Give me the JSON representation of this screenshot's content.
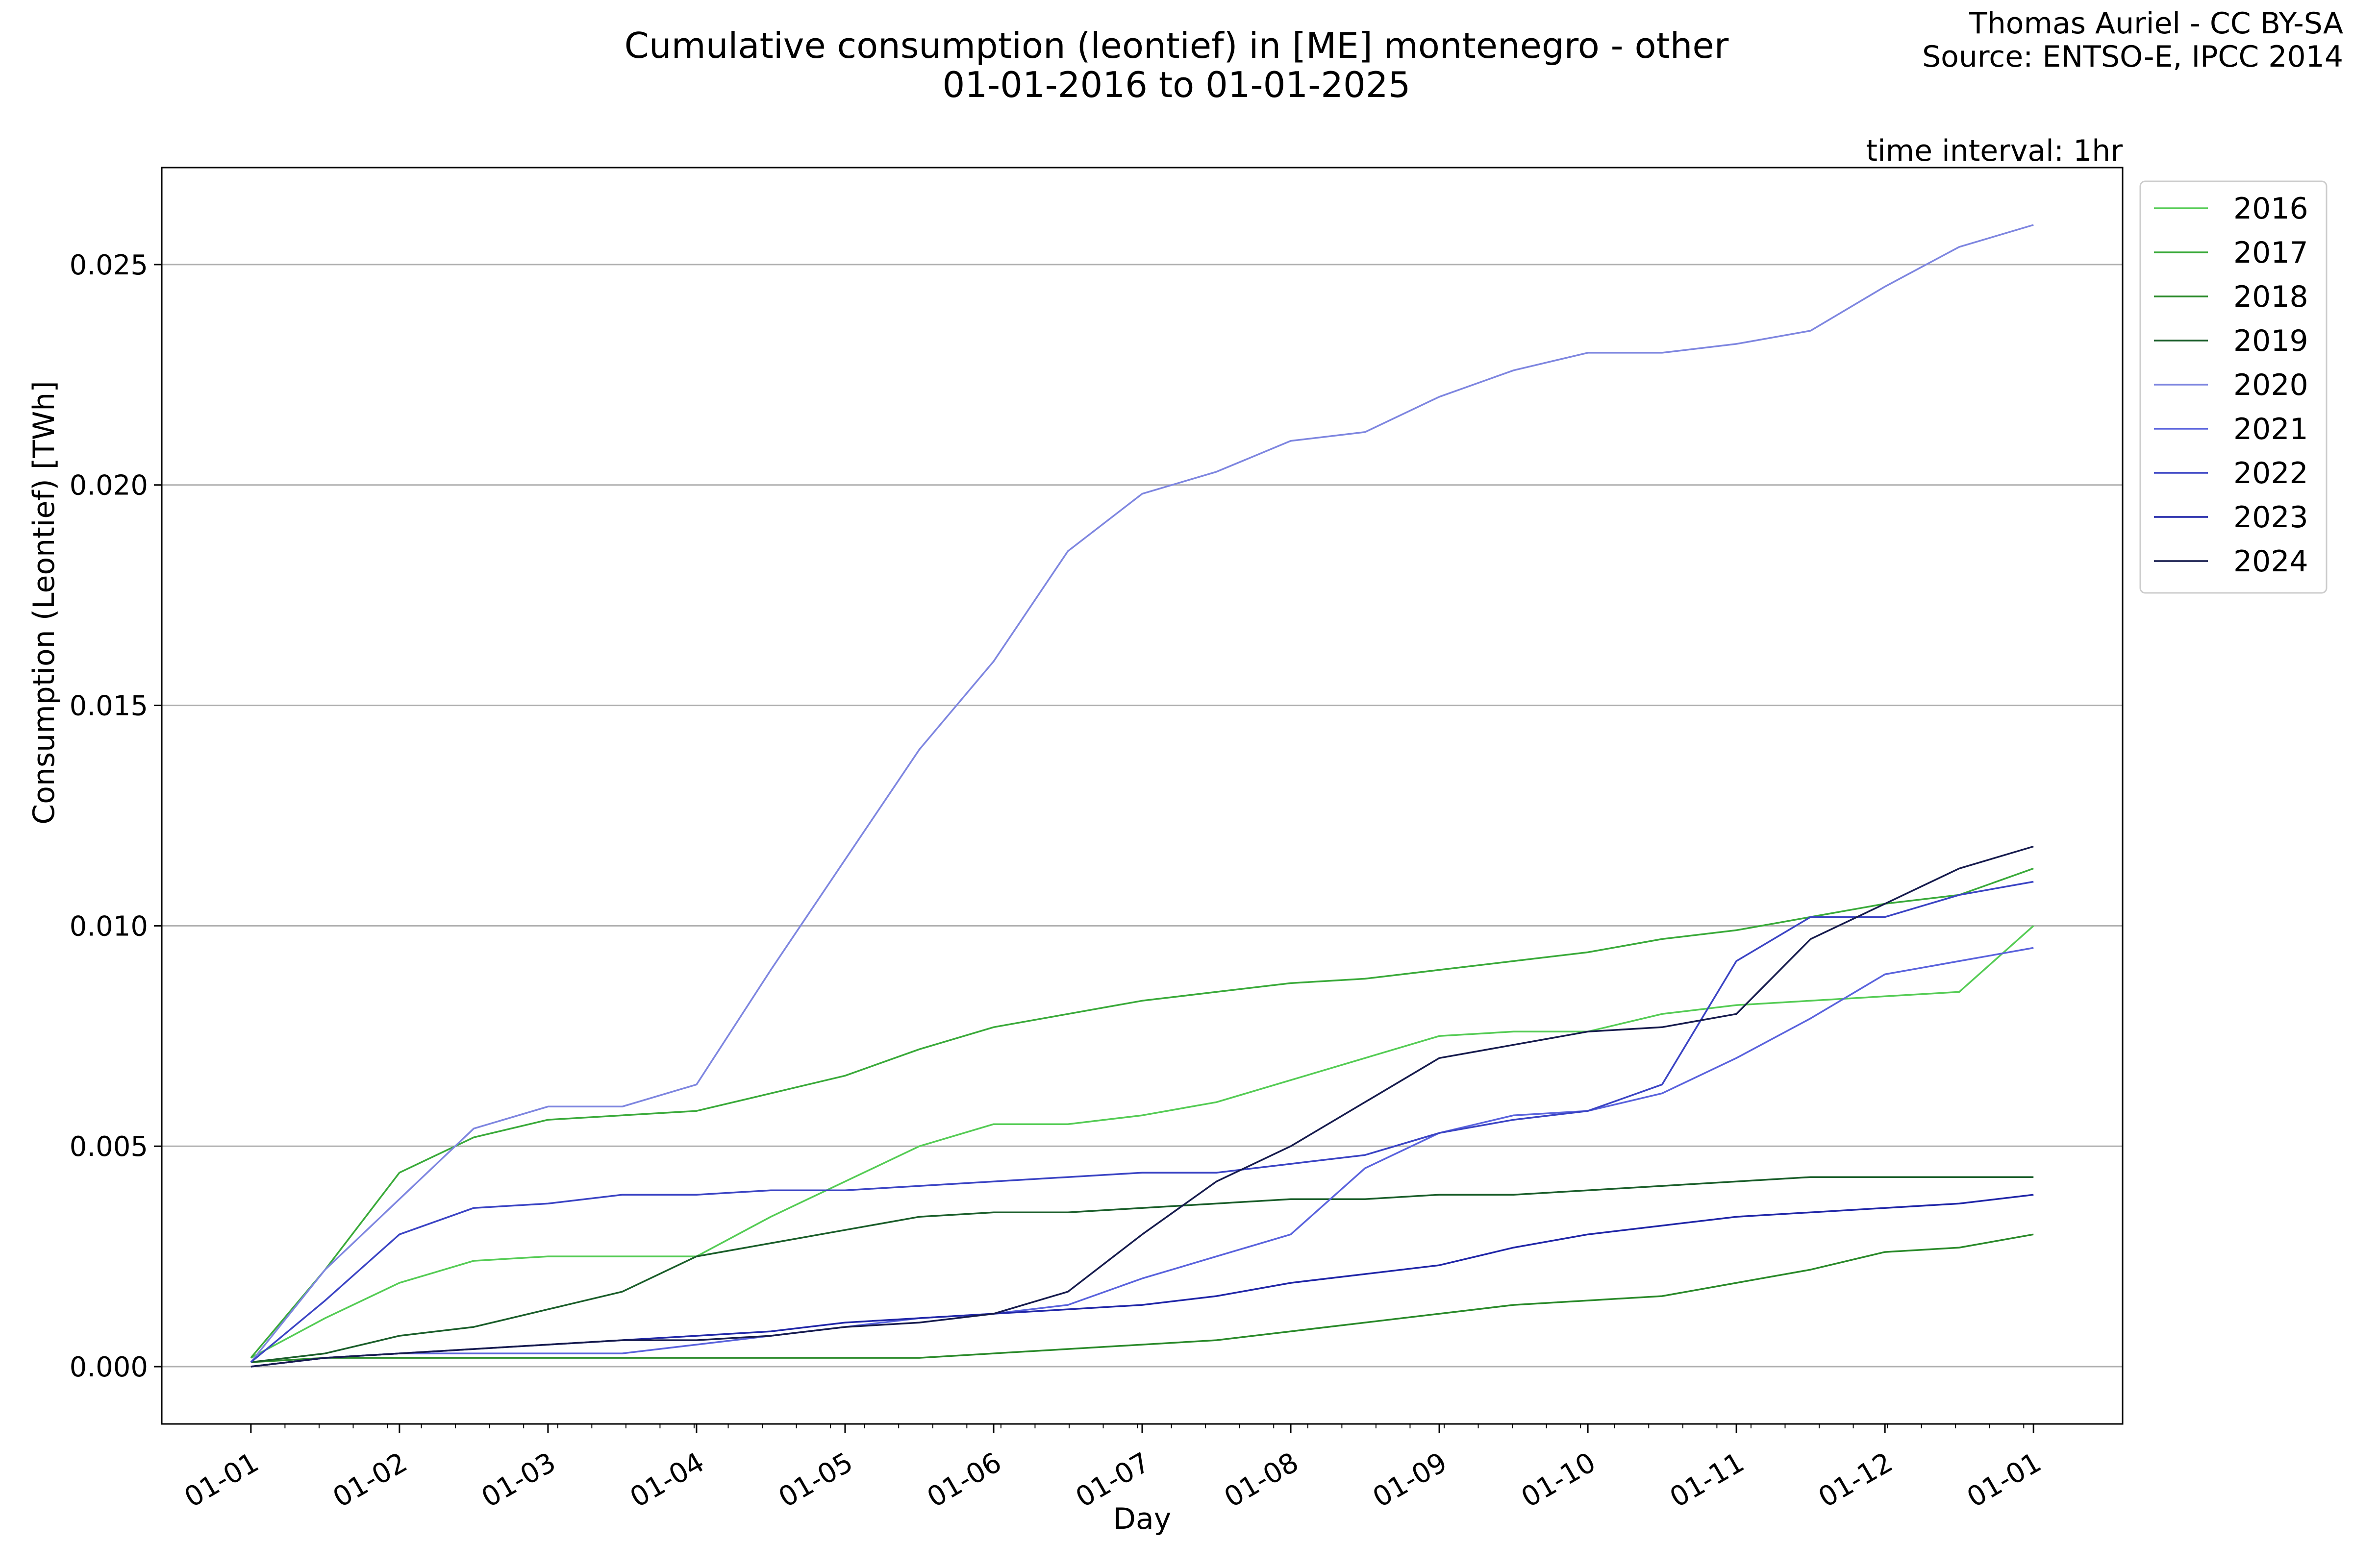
{
  "chart_data": {
    "type": "line",
    "title": "Cumulative consumption (leontief) in [ME] montenegro - other",
    "subtitle": "01-01-2016 to 01-01-2025",
    "credit": [
      "Thomas Auriel - CC BY-SA",
      "Source: ENTSO-E, IPCC 2014"
    ],
    "annotation": "time interval: 1hr",
    "xlabel": "Day",
    "ylabel": "Consumption (Leontief) [TWh]",
    "xticks": [
      "01-01",
      "01-02",
      "01-03",
      "01-04",
      "01-05",
      "01-06",
      "01-07",
      "01-08",
      "01-09",
      "01-10",
      "01-11",
      "01-12",
      "01-01"
    ],
    "xlim_months": [
      -0.6,
      12.6
    ],
    "yticks": [
      "0.000",
      "0.005",
      "0.010",
      "0.015",
      "0.020",
      "0.025"
    ],
    "ytick_values": [
      0,
      0.005,
      0.01,
      0.015,
      0.02,
      0.025
    ],
    "ylim": [
      -0.0013,
      0.0272
    ],
    "grid": "horizontal",
    "legend_position": "outside-top-right",
    "x_months": [
      0,
      0.5,
      1,
      1.5,
      2,
      2.5,
      3,
      3.5,
      4,
      4.5,
      5,
      5.5,
      6,
      6.5,
      7,
      7.5,
      8,
      8.5,
      9,
      9.5,
      10,
      10.5,
      11,
      11.5,
      12
    ],
    "series": [
      {
        "name": "2016",
        "color": "#55cc55",
        "values": [
          0.0002,
          0.0011,
          0.0019,
          0.0024,
          0.0025,
          0.0025,
          0.0025,
          0.0034,
          0.0042,
          0.005,
          0.0055,
          0.0055,
          0.0057,
          0.006,
          0.0065,
          0.007,
          0.0075,
          0.0076,
          0.0076,
          0.008,
          0.0082,
          0.0083,
          0.0084,
          0.0085,
          0.01
        ]
      },
      {
        "name": "2017",
        "color": "#3aaa3a",
        "values": [
          0.0002,
          0.0022,
          0.0044,
          0.0052,
          0.0056,
          0.0057,
          0.0058,
          0.0062,
          0.0066,
          0.0072,
          0.0077,
          0.008,
          0.0083,
          0.0085,
          0.0087,
          0.0088,
          0.009,
          0.0092,
          0.0094,
          0.0097,
          0.0099,
          0.0102,
          0.0105,
          0.0107,
          0.0113
        ]
      },
      {
        "name": "2018",
        "color": "#2a8a2a",
        "values": [
          0.0001,
          0.0002,
          0.0002,
          0.0002,
          0.0002,
          0.0002,
          0.0002,
          0.0002,
          0.0002,
          0.0002,
          0.0003,
          0.0004,
          0.0005,
          0.0006,
          0.0008,
          0.001,
          0.0012,
          0.0014,
          0.0015,
          0.0016,
          0.0019,
          0.0022,
          0.0026,
          0.0027,
          0.003
        ]
      },
      {
        "name": "2019",
        "color": "#1a5e2a",
        "values": [
          0.0001,
          0.0003,
          0.0007,
          0.0009,
          0.0013,
          0.0017,
          0.0025,
          0.0028,
          0.0031,
          0.0034,
          0.0035,
          0.0035,
          0.0036,
          0.0037,
          0.0038,
          0.0038,
          0.0039,
          0.0039,
          0.004,
          0.0041,
          0.0042,
          0.0043,
          0.0043,
          0.0043,
          0.0043
        ]
      },
      {
        "name": "2020",
        "color": "#7e86e0",
        "values": [
          0.0001,
          0.0022,
          0.0038,
          0.0054,
          0.0059,
          0.0059,
          0.0064,
          0.009,
          0.0115,
          0.014,
          0.016,
          0.0185,
          0.0198,
          0.0203,
          0.021,
          0.0212,
          0.022,
          0.0226,
          0.023,
          0.023,
          0.0232,
          0.0235,
          0.0245,
          0.0254,
          0.0259
        ]
      },
      {
        "name": "2021",
        "color": "#5a63dd",
        "values": [
          0.0,
          0.0002,
          0.0003,
          0.0003,
          0.0003,
          0.0003,
          0.0005,
          0.0007,
          0.0009,
          0.0011,
          0.0012,
          0.0014,
          0.002,
          0.0025,
          0.003,
          0.0045,
          0.0053,
          0.0057,
          0.0058,
          0.0062,
          0.007,
          0.0079,
          0.0089,
          0.0092,
          0.0095
        ]
      },
      {
        "name": "2022",
        "color": "#3b44c4",
        "values": [
          0.0001,
          0.0015,
          0.003,
          0.0036,
          0.0037,
          0.0039,
          0.0039,
          0.004,
          0.004,
          0.0041,
          0.0042,
          0.0043,
          0.0044,
          0.0044,
          0.0046,
          0.0048,
          0.0053,
          0.0056,
          0.0058,
          0.0064,
          0.0092,
          0.0102,
          0.0102,
          0.0107,
          0.011
        ]
      },
      {
        "name": "2023",
        "color": "#2026a8",
        "values": [
          0.0,
          0.0002,
          0.0003,
          0.0004,
          0.0005,
          0.0006,
          0.0007,
          0.0008,
          0.001,
          0.0011,
          0.0012,
          0.0013,
          0.0014,
          0.0016,
          0.0019,
          0.0021,
          0.0023,
          0.0027,
          0.003,
          0.0032,
          0.0034,
          0.0035,
          0.0036,
          0.0037,
          0.0039
        ]
      },
      {
        "name": "2024",
        "color": "#161b4d",
        "values": [
          0.0,
          0.0002,
          0.0003,
          0.0004,
          0.0005,
          0.0006,
          0.0006,
          0.0007,
          0.0009,
          0.001,
          0.0012,
          0.0017,
          0.003,
          0.0042,
          0.005,
          0.006,
          0.007,
          0.0073,
          0.0076,
          0.0077,
          0.008,
          0.0097,
          0.0105,
          0.0113,
          0.0118
        ]
      }
    ]
  }
}
